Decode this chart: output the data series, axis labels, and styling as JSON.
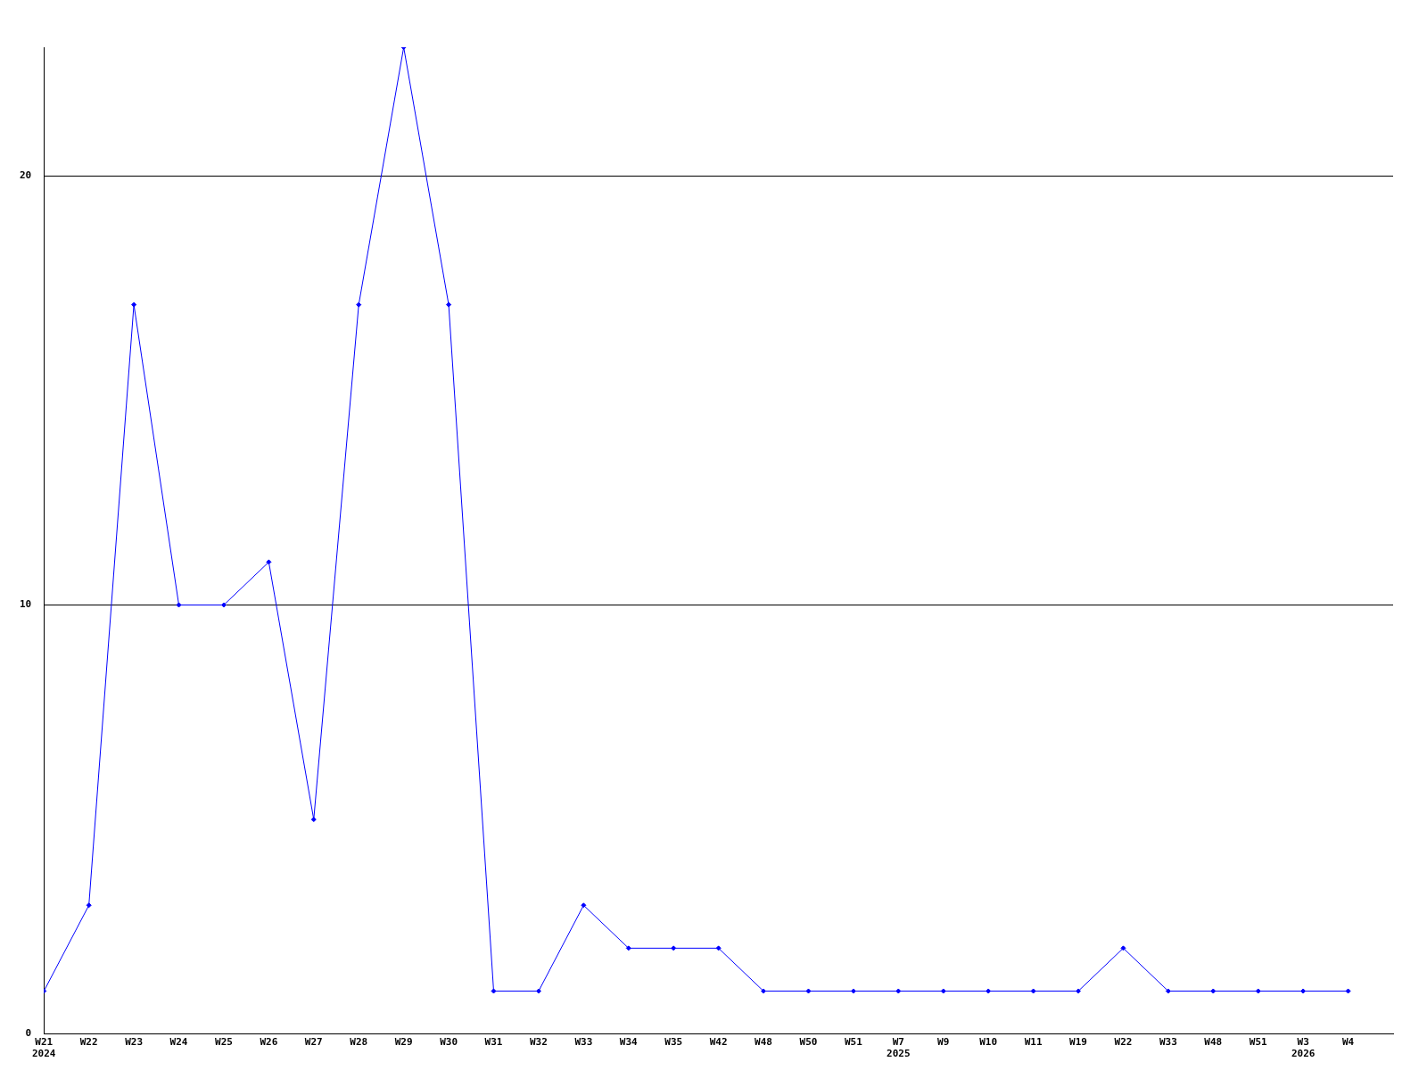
{
  "chart_data": {
    "type": "line",
    "categories": [
      "W21\n2024",
      "W22",
      "W23",
      "W24",
      "W25",
      "W26",
      "W27",
      "W28",
      "W29",
      "W30",
      "W31",
      "W32",
      "W33",
      "W34",
      "W35",
      "W42",
      "W48",
      "W50",
      "W51",
      "W7\n2025",
      "W9",
      "W10",
      "W11",
      "W19",
      "W22",
      "W33",
      "W48",
      "W51",
      "W3\n2026",
      "W4"
    ],
    "series": [
      {
        "color": "#0000ff",
        "values": [
          1,
          3,
          17,
          10,
          10,
          11,
          5,
          17,
          23,
          17,
          1,
          1,
          3,
          2,
          2,
          2,
          1,
          1,
          1,
          1,
          1,
          1,
          1,
          1,
          2,
          1,
          1,
          1,
          1,
          1
        ]
      }
    ],
    "ylim": [
      0,
      23
    ],
    "yticks": [
      0,
      10,
      20
    ],
    "grid": "y",
    "legend": false,
    "marker": "diamond",
    "line_style": "solid"
  }
}
